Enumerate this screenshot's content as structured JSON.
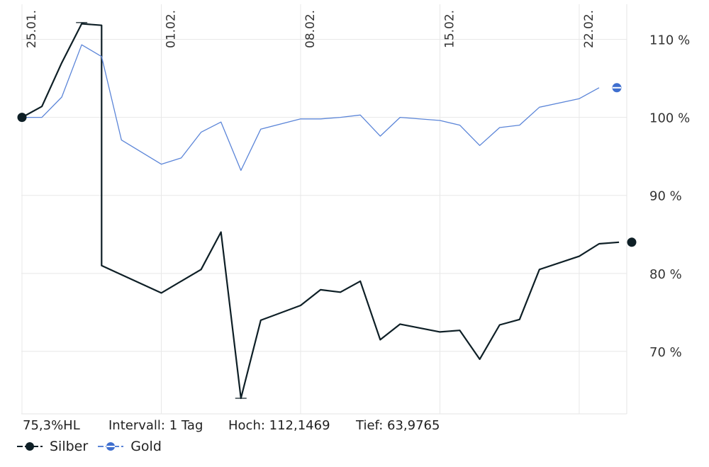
{
  "chart_data": {
    "type": "line",
    "x": [
      "2021-01-25",
      "2021-01-26",
      "2021-01-27",
      "2021-01-28",
      "2021-01-29",
      "2021-02-01",
      "2021-02-02",
      "2021-02-03",
      "2021-02-04",
      "2021-02-05",
      "2021-02-08",
      "2021-02-09",
      "2021-02-10",
      "2021-02-11",
      "2021-02-12",
      "2021-02-15",
      "2021-02-16",
      "2021-02-17",
      "2021-02-18",
      "2021-02-19",
      "2021-02-22",
      "2021-02-23",
      "2021-02-24",
      "2021-02-25"
    ],
    "x_ticks": [
      {
        "date": "2021-01-25",
        "label": "25.01."
      },
      {
        "date": "2021-02-01",
        "label": "01.02."
      },
      {
        "date": "2021-02-08",
        "label": "08.02."
      },
      {
        "date": "2021-02-15",
        "label": "15.02."
      },
      {
        "date": "2021-02-22",
        "label": "22.02."
      }
    ],
    "y_ticks": [
      {
        "value": 70,
        "label": "70 %"
      },
      {
        "value": 80,
        "label": "80 %"
      },
      {
        "value": 90,
        "label": "90 %"
      },
      {
        "value": 100,
        "label": "100 %"
      },
      {
        "value": 110,
        "label": "110 %"
      }
    ],
    "ylim": [
      62,
      114.5
    ],
    "grid": true,
    "legend_position": "bottom-left",
    "series": [
      {
        "name": "Silber",
        "color": "#0e1f26",
        "high_low": [
          {
            "date": "2021-01-28",
            "high": 112.15,
            "low": 112.15
          },
          {
            "date": "2021-02-05",
            "high": 64.0,
            "low": 64.0
          }
        ],
        "points": [
          {
            "x": "2021-01-25",
            "y": 100.0
          },
          {
            "x": "2021-01-26",
            "y": 101.4
          },
          {
            "x": "2021-01-27",
            "y": 107.0
          },
          {
            "x": "2021-01-28",
            "y": 112.0
          },
          {
            "x": "2021-01-29",
            "y": 111.8
          },
          {
            "x": "2021-01-29",
            "y": 81.0
          },
          {
            "x": "2021-02-01",
            "y": 77.5
          },
          {
            "x": "2021-02-02",
            "y": 79.0
          },
          {
            "x": "2021-02-03",
            "y": 80.5
          },
          {
            "x": "2021-02-04",
            "y": 85.3
          },
          {
            "x": "2021-02-05",
            "y": 64.0
          },
          {
            "x": "2021-02-06",
            "y": 74.0
          },
          {
            "x": "2021-02-08",
            "y": 75.9
          },
          {
            "x": "2021-02-09",
            "y": 77.9
          },
          {
            "x": "2021-02-10",
            "y": 77.6
          },
          {
            "x": "2021-02-11",
            "y": 79.0
          },
          {
            "x": "2021-02-12",
            "y": 71.5
          },
          {
            "x": "2021-02-13",
            "y": 73.5
          },
          {
            "x": "2021-02-15",
            "y": 72.5
          },
          {
            "x": "2021-02-16",
            "y": 72.7
          },
          {
            "x": "2021-02-17",
            "y": 69.0
          },
          {
            "x": "2021-02-18",
            "y": 73.4
          },
          {
            "x": "2021-02-19",
            "y": 74.1
          },
          {
            "x": "2021-02-20",
            "y": 80.5
          },
          {
            "x": "2021-02-22",
            "y": 82.2
          },
          {
            "x": "2021-02-23",
            "y": 83.8
          },
          {
            "x": "2021-02-24",
            "y": 84.0
          }
        ]
      },
      {
        "name": "Gold",
        "color": "#5b85d8",
        "points": [
          {
            "x": "2021-01-25",
            "y": 100.0
          },
          {
            "x": "2021-01-26",
            "y": 100.0
          },
          {
            "x": "2021-01-27",
            "y": 102.6
          },
          {
            "x": "2021-01-28",
            "y": 109.3
          },
          {
            "x": "2021-01-29",
            "y": 107.8
          },
          {
            "x": "2021-01-30",
            "y": 97.1
          },
          {
            "x": "2021-02-01",
            "y": 94.0
          },
          {
            "x": "2021-02-02",
            "y": 94.8
          },
          {
            "x": "2021-02-03",
            "y": 98.1
          },
          {
            "x": "2021-02-04",
            "y": 99.4
          },
          {
            "x": "2021-02-05",
            "y": 93.2
          },
          {
            "x": "2021-02-06",
            "y": 98.5
          },
          {
            "x": "2021-02-08",
            "y": 99.8
          },
          {
            "x": "2021-02-09",
            "y": 99.8
          },
          {
            "x": "2021-02-10",
            "y": 100.0
          },
          {
            "x": "2021-02-11",
            "y": 100.3
          },
          {
            "x": "2021-02-12",
            "y": 97.6
          },
          {
            "x": "2021-02-13",
            "y": 100.0
          },
          {
            "x": "2021-02-15",
            "y": 99.6
          },
          {
            "x": "2021-02-16",
            "y": 99.0
          },
          {
            "x": "2021-02-17",
            "y": 96.4
          },
          {
            "x": "2021-02-18",
            "y": 98.7
          },
          {
            "x": "2021-02-19",
            "y": 99.0
          },
          {
            "x": "2021-02-20",
            "y": 101.3
          },
          {
            "x": "2021-02-22",
            "y": 102.4
          },
          {
            "x": "2021-02-23",
            "y": 103.8
          }
        ]
      }
    ]
  },
  "info": {
    "ratio": "75,3%HL",
    "interval": "Intervall: 1 Tag",
    "high": "Hoch: 112,1469",
    "low": "Tief: 63,9765"
  },
  "legend": {
    "silber": "Silber",
    "gold": "Gold"
  }
}
